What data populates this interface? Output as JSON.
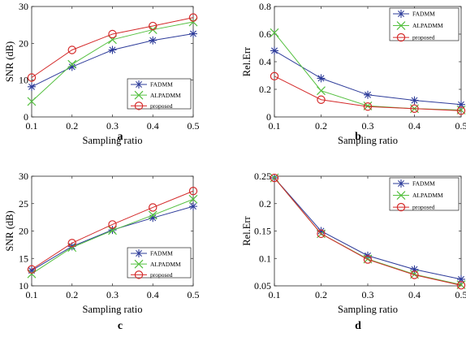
{
  "colors": {
    "FADMM": "#2e3c9a",
    "ALPADMM": "#55c040",
    "proposed": "#d42a2a"
  },
  "markers": {
    "FADMM": "asterisk",
    "ALPADMM": "x-cross",
    "proposed": "circle"
  },
  "chart_data": [
    {
      "type": "line",
      "panel_label": "a",
      "xlabel": "Sampling ratio",
      "ylabel": "SNR (dB)",
      "xlim": [
        0.1,
        0.5
      ],
      "ylim": [
        0,
        30
      ],
      "xticks": [
        "0.1",
        "0.2",
        "0.3",
        "0.4",
        "0.5"
      ],
      "yticks": [
        "0",
        "10",
        "20",
        "30"
      ],
      "legend_position": "bottom-right",
      "grid": false,
      "x": [
        0.1,
        0.2,
        0.3,
        0.4,
        0.5
      ],
      "series": [
        {
          "name": "FADMM",
          "values": [
            8.2,
            13.6,
            18.2,
            20.8,
            22.6
          ]
        },
        {
          "name": "ALPADMM",
          "values": [
            4.2,
            14.3,
            21.0,
            23.7,
            25.8
          ]
        },
        {
          "name": "proposed",
          "values": [
            10.7,
            18.2,
            22.5,
            24.7,
            27.0
          ]
        }
      ]
    },
    {
      "type": "line",
      "panel_label": "b",
      "xlabel": "Sampling ratio",
      "ylabel": "Rel.Err",
      "xlim": [
        0.1,
        0.5
      ],
      "ylim": [
        0,
        0.8
      ],
      "xticks": [
        "0.1",
        "0.2",
        "0.3",
        "0.4",
        "0.5"
      ],
      "yticks": [
        "0",
        "0.2",
        "0.4",
        "0.6",
        "0.8"
      ],
      "legend_position": "top-right",
      "grid": false,
      "x": [
        0.1,
        0.2,
        0.3,
        0.4,
        0.5
      ],
      "series": [
        {
          "name": "FADMM",
          "values": [
            0.48,
            0.28,
            0.16,
            0.12,
            0.09
          ]
        },
        {
          "name": "ALPADMM",
          "values": [
            0.61,
            0.19,
            0.08,
            0.06,
            0.05
          ]
        },
        {
          "name": "proposed",
          "values": [
            0.295,
            0.125,
            0.075,
            0.06,
            0.045
          ]
        }
      ]
    },
    {
      "type": "line",
      "panel_label": "c",
      "xlabel": "Sampling ratio",
      "ylabel": "SNR (dB)",
      "xlim": [
        0.1,
        0.5
      ],
      "ylim": [
        10,
        30
      ],
      "xticks": [
        "0.1",
        "0.2",
        "0.3",
        "0.4",
        "0.5"
      ],
      "yticks": [
        "10",
        "15",
        "20",
        "25",
        "30"
      ],
      "legend_position": "bottom-right",
      "grid": false,
      "x": [
        0.1,
        0.2,
        0.3,
        0.4,
        0.5
      ],
      "series": [
        {
          "name": "FADMM",
          "values": [
            12.8,
            17.2,
            20.2,
            22.4,
            24.5
          ]
        },
        {
          "name": "ALPADMM",
          "values": [
            12.2,
            17.0,
            20.1,
            22.9,
            25.8
          ]
        },
        {
          "name": "proposed",
          "values": [
            13.0,
            17.8,
            21.2,
            24.3,
            27.3
          ]
        }
      ]
    },
    {
      "type": "line",
      "panel_label": "d",
      "xlabel": "Sampling ratio",
      "ylabel": "Rel.Err",
      "xlim": [
        0.1,
        0.5
      ],
      "ylim": [
        0.05,
        0.25
      ],
      "xticks": [
        "0.1",
        "0.2",
        "0.3",
        "0.4",
        "0.5"
      ],
      "yticks": [
        "0.05",
        "0.1",
        "0.15",
        "0.2",
        "0.25"
      ],
      "legend_position": "top-right",
      "grid": false,
      "x": [
        0.1,
        0.2,
        0.3,
        0.4,
        0.5
      ],
      "series": [
        {
          "name": "FADMM",
          "values": [
            0.247,
            0.15,
            0.105,
            0.08,
            0.062
          ]
        },
        {
          "name": "ALPADMM",
          "values": [
            0.247,
            0.145,
            0.099,
            0.071,
            0.052
          ]
        },
        {
          "name": "proposed",
          "values": [
            0.247,
            0.145,
            0.098,
            0.07,
            0.051
          ]
        }
      ]
    }
  ]
}
